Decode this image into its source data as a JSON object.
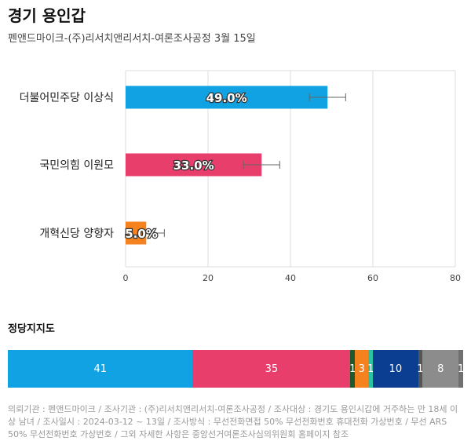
{
  "header": {
    "title": "경기 용인갑",
    "subtitle": "펜앤드마이크-(주)리서치앤리서치-여론조사공정 3월 15일"
  },
  "chart_data": [
    {
      "type": "bar",
      "orientation": "horizontal",
      "categories": [
        "더불어민주당 이상식",
        "국민의힘 이원모",
        "개혁신당 양향자"
      ],
      "values": [
        49.0,
        33.0,
        5.0
      ],
      "value_labels": [
        "49.0%",
        "33.0%",
        "5.0%"
      ],
      "error_bars": [
        [
          44.6,
          53.4
        ],
        [
          28.6,
          37.4
        ],
        [
          3.0,
          9.4
        ]
      ],
      "colors": [
        "#10a2e2",
        "#e83e6c",
        "#f5821f"
      ],
      "xlim": [
        0,
        80
      ],
      "xticks": [
        0,
        20,
        40,
        60,
        80
      ],
      "grid": true
    },
    {
      "type": "stacked-bar",
      "title": "정당지지도",
      "values": [
        41,
        35,
        1,
        3,
        1,
        10,
        1,
        8,
        1
      ],
      "value_labels": [
        "41",
        "35",
        "1",
        "3",
        "1",
        "10",
        "1",
        "8",
        "1"
      ],
      "colors": [
        "#10a2e2",
        "#e83e6c",
        "#1f5a2e",
        "#f5821f",
        "#2bc2a0",
        "#0b3d91",
        "#555555",
        "#8c8c8c",
        "#707070"
      ]
    }
  ],
  "footer": {
    "text": "의뢰기관 : 펜앤드마이크 / 조사기관 : (주)리서치앤리서치-여론조사공정 / 조사대상 : 경기도 용인시갑에 거주하는 만 18세 이상 남녀 / 조사일시 : 2024-03-12 ~ 13일 / 조사방식 : 무선전화면접 50% 무선전화번호 휴대전화 가상번호 / 무선 ARS 50% 무선전화번호 가상번호 / 그외 자세한 사항은 중앙선거여론조사심의위원회 홈페이지 참조"
  }
}
